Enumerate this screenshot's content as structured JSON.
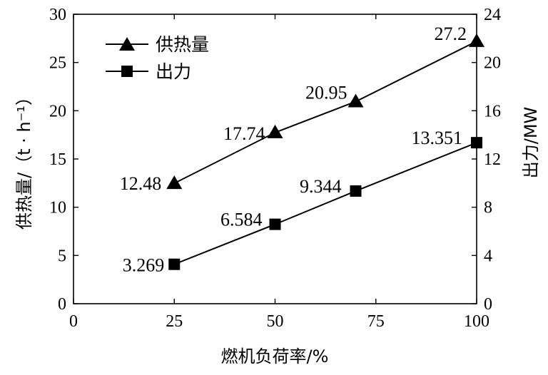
{
  "chart_data": {
    "type": "line",
    "xlabel": "燃机负荷率/%",
    "ylabel_left": "供热量/（t · h⁻¹）",
    "ylabel_right": "出力/MW",
    "xlim": [
      0,
      100
    ],
    "ylim_left": [
      0,
      30
    ],
    "ylim_right": [
      0,
      24
    ],
    "x_ticks": [
      0,
      25,
      50,
      75,
      100
    ],
    "y_ticks_left": [
      0,
      5,
      10,
      15,
      20,
      25,
      30
    ],
    "y_ticks_right": [
      0,
      4,
      8,
      12,
      16,
      20,
      24
    ],
    "grid": false,
    "legend_position": "top-left",
    "series": [
      {
        "name": "供热量",
        "axis": "left",
        "marker": "triangle",
        "x": [
          25,
          50,
          70,
          100
        ],
        "values": [
          12.48,
          17.74,
          20.95,
          27.2
        ],
        "labels": [
          "12.48",
          "17.74",
          "20.95",
          "27.2"
        ]
      },
      {
        "name": "出力",
        "axis": "right",
        "marker": "square",
        "x": [
          25,
          50,
          70,
          100
        ],
        "values": [
          3.269,
          6.584,
          9.344,
          13.351
        ],
        "labels": [
          "3.269",
          "6.584",
          "9.344",
          "13.351"
        ]
      }
    ]
  }
}
